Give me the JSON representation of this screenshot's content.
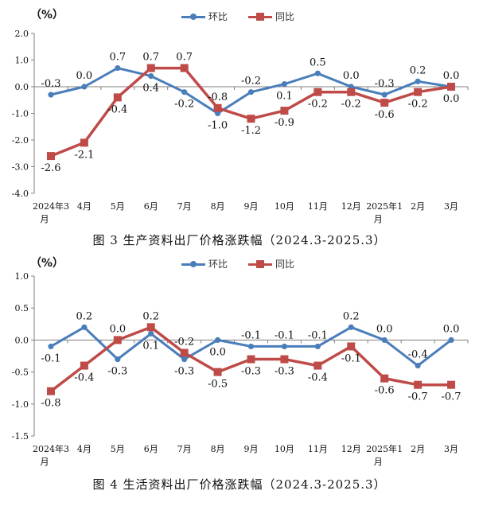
{
  "colors": {
    "series_hb": "#4a7ebb",
    "series_tb": "#be4b48",
    "axis": "#7f7f7f",
    "text": "#111111"
  },
  "chart_data": [
    {
      "type": "line",
      "unit_label": "（%）",
      "caption": "图 3 生产资料出厂价格涨跌幅（2024.3-2025.3）",
      "categories": [
        "2024年3月",
        "4月",
        "5月",
        "6月",
        "7月",
        "8月",
        "9月",
        "10月",
        "11月",
        "12月",
        "2025年1月",
        "2月",
        "3月"
      ],
      "ylim": [
        -4.0,
        2.0
      ],
      "yticks": [
        "-4.0",
        "-3.0",
        "-2.0",
        "-1.0",
        "0.0",
        "1.0",
        "2.0"
      ],
      "ytick_values": [
        -4,
        -3,
        -2,
        -1,
        0,
        1,
        2
      ],
      "legend_position": "top-center",
      "series": [
        {
          "name": "环比",
          "marker": "circle",
          "values": [
            -0.3,
            0.0,
            0.7,
            0.4,
            -0.2,
            -1.0,
            -0.2,
            0.1,
            0.5,
            0.0,
            -0.3,
            0.2,
            0.0
          ],
          "labels": [
            "-0.3",
            "0.0",
            "0.7",
            "0.4",
            "-0.2",
            "-1.0",
            "-0.2",
            "0.1",
            "0.5",
            "0.0",
            "-0.3",
            "0.2",
            "0.0"
          ],
          "label_pos": [
            "up",
            "up",
            "up",
            "down",
            "down",
            "down",
            "up",
            "down",
            "up",
            "up",
            "up",
            "up",
            "up"
          ]
        },
        {
          "name": "同比",
          "marker": "square",
          "values": [
            -2.6,
            -2.1,
            -0.4,
            0.7,
            0.7,
            -0.8,
            -1.2,
            -0.9,
            -0.2,
            -0.2,
            -0.6,
            -0.2,
            0.0
          ],
          "labels": [
            "-2.6",
            "-2.1",
            "-0.4",
            "0.7",
            "0.7",
            "-0.8",
            "-1.2",
            "-0.9",
            "-0.2",
            "-0.2",
            "-0.6",
            "-0.2",
            "0.0"
          ],
          "label_pos": [
            "down",
            "down",
            "down",
            "up",
            "up",
            "up",
            "down",
            "down",
            "down",
            "down",
            "down",
            "down",
            "down"
          ]
        }
      ]
    },
    {
      "type": "line",
      "unit_label": "（%）",
      "caption": "图 4 生活资料出厂价格涨跌幅（2024.3-2025.3）",
      "categories": [
        "2024年3月",
        "4月",
        "5月",
        "6月",
        "7月",
        "8月",
        "9月",
        "10月",
        "11月",
        "12月",
        "2025年1月",
        "2月",
        "3月"
      ],
      "ylim": [
        -1.5,
        1.0
      ],
      "yticks": [
        "-1.5",
        "-1.0",
        "-0.5",
        "0.0",
        "0.5",
        "1.0"
      ],
      "ytick_values": [
        -1.5,
        -1.0,
        -0.5,
        0.0,
        0.5,
        1.0
      ],
      "legend_position": "top-center",
      "series": [
        {
          "name": "环比",
          "marker": "circle",
          "values": [
            -0.1,
            0.2,
            -0.3,
            0.1,
            -0.3,
            0.0,
            -0.1,
            -0.1,
            -0.1,
            0.2,
            0.0,
            -0.4,
            0.0
          ],
          "labels": [
            "-0.1",
            "0.2",
            "-0.3",
            "0.1",
            "-0.3",
            "0.0",
            "-0.1",
            "-0.1",
            "-0.1",
            "0.2",
            "0.0",
            "-0.4",
            "0.0"
          ],
          "label_pos": [
            "down",
            "up",
            "down",
            "down",
            "down",
            "down",
            "up",
            "up",
            "up",
            "up",
            "up",
            "up",
            "up"
          ]
        },
        {
          "name": "同比",
          "marker": "square",
          "values": [
            -0.8,
            -0.4,
            0.0,
            0.2,
            -0.2,
            -0.5,
            -0.3,
            -0.3,
            -0.4,
            -0.1,
            -0.6,
            -0.7,
            -0.7
          ],
          "labels": [
            "-0.8",
            "-0.4",
            "0.0",
            "0.2",
            "-0.2",
            "-0.5",
            "-0.3",
            "-0.3",
            "-0.4",
            "-0.1",
            "-0.6",
            "-0.7",
            "-0.7"
          ],
          "label_pos": [
            "down",
            "down",
            "up",
            "up",
            "up",
            "down",
            "down",
            "down",
            "down",
            "down",
            "down",
            "down",
            "down"
          ]
        }
      ]
    }
  ]
}
